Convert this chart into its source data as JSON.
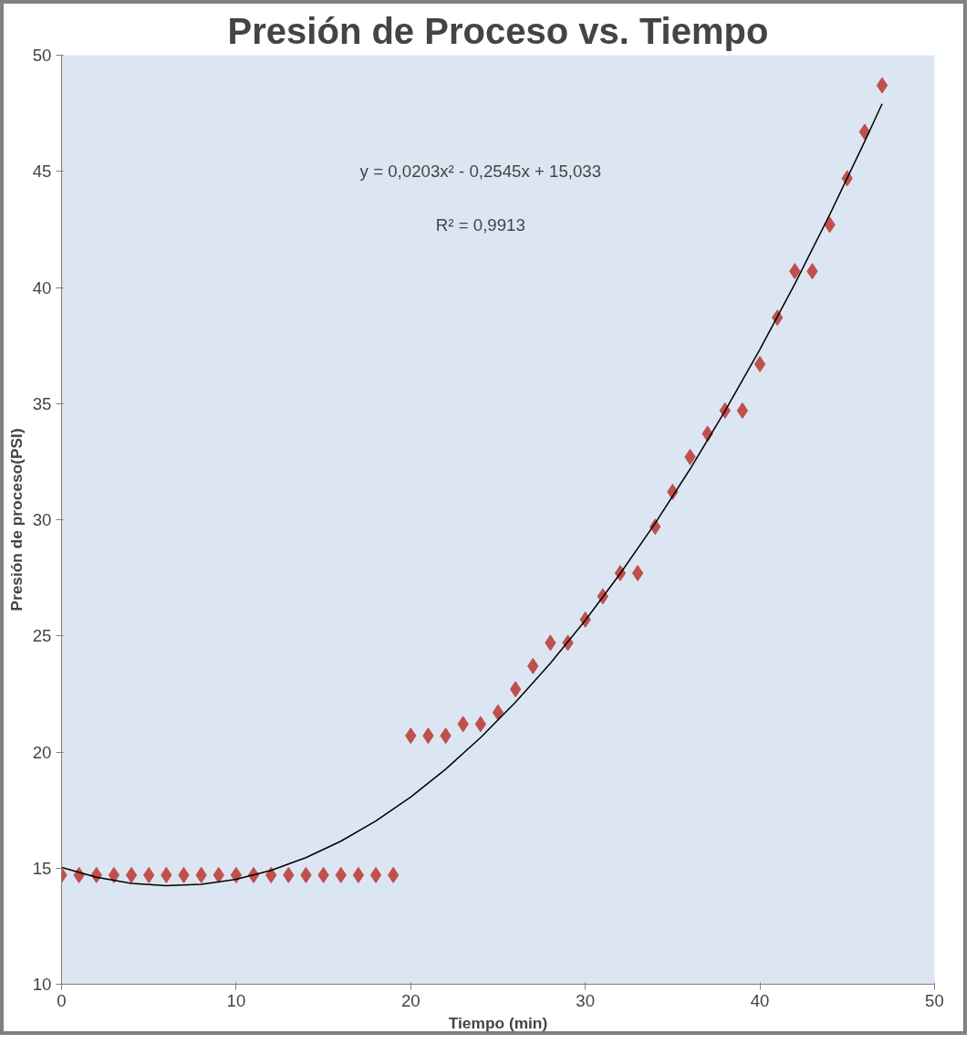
{
  "chart_data": {
    "type": "scatter",
    "title": "Presión de Proceso vs. Tiempo",
    "xlabel": "Tiempo (min)",
    "ylabel": "Presión de proceso(PSI)",
    "xlim": [
      0,
      50
    ],
    "xticks": [
      0,
      10,
      20,
      30,
      40,
      50
    ],
    "ylim": [
      10,
      50
    ],
    "yticks": [
      10,
      15,
      20,
      25,
      30,
      35,
      40,
      45,
      50
    ],
    "grid": false,
    "marker": "diamond",
    "series": [
      {
        "color": "#c0504d",
        "x": [
          0,
          1,
          2,
          3,
          4,
          5,
          6,
          7,
          8,
          9,
          10,
          11,
          12,
          13,
          14,
          15,
          16,
          17,
          18,
          19,
          20,
          21,
          22,
          23,
          24,
          25,
          26,
          27,
          28,
          29,
          30,
          31,
          32,
          33,
          34,
          35,
          36,
          37,
          38,
          39,
          40,
          41,
          42,
          43,
          44,
          45,
          46,
          47
        ],
        "values": [
          14.7,
          14.7,
          14.7,
          14.7,
          14.7,
          14.7,
          14.7,
          14.7,
          14.7,
          14.7,
          14.7,
          14.7,
          14.7,
          14.7,
          14.7,
          14.7,
          14.7,
          14.7,
          14.7,
          14.7,
          20.7,
          20.7,
          20.7,
          21.2,
          21.2,
          21.7,
          22.7,
          23.7,
          24.7,
          24.7,
          25.7,
          26.7,
          27.7,
          27.7,
          29.7,
          31.2,
          32.7,
          33.7,
          34.7,
          34.7,
          36.7,
          38.7,
          40.7,
          40.7,
          42.7,
          44.7,
          46.7,
          48.7
        ]
      },
      {
        "type": "line",
        "color": "#000000",
        "marker": "none",
        "line_style": "solid",
        "x": [
          0,
          2,
          4,
          6,
          8,
          10,
          12,
          14,
          16,
          18,
          20,
          22,
          24,
          26,
          28,
          30,
          32,
          34,
          36,
          38,
          40,
          42,
          44,
          46,
          47
        ],
        "values": [
          15.03,
          14.61,
          14.34,
          14.24,
          14.3,
          14.52,
          14.9,
          15.45,
          16.16,
          17.03,
          18.06,
          19.26,
          20.62,
          22.14,
          23.82,
          25.67,
          27.68,
          29.85,
          32.18,
          34.68,
          37.33,
          40.15,
          43.14,
          46.28,
          47.91
        ]
      }
    ],
    "annotations": [
      "y = 0,0203x² - 0,2545x + 15,033",
      "R² = 0,9913"
    ]
  }
}
